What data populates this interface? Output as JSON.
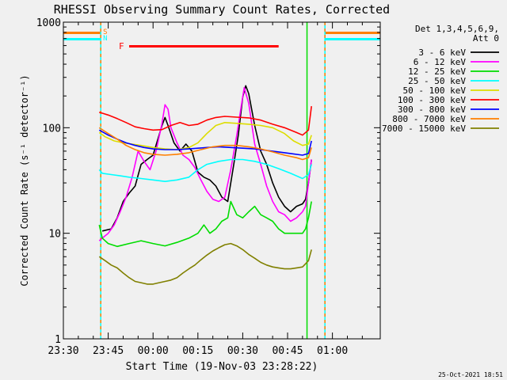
{
  "chart_data": {
    "type": "line",
    "title": "RHESSI Observing Summary Count Rates, Corrected",
    "xlabel": "Start Time (19-Nov-03 23:28:22)",
    "ylabel": "Corrected Count Rate (s⁻¹ detector⁻¹)",
    "yscale": "log",
    "ylim": [
      1,
      1000
    ],
    "xlim_minutes": [
      -30,
      76
    ],
    "x_ticks": [
      {
        "label": "23:30",
        "minutes": -30
      },
      {
        "label": "23:45",
        "minutes": -15
      },
      {
        "label": "00:00",
        "minutes": 0
      },
      {
        "label": "00:15",
        "minutes": 15
      },
      {
        "label": "00:30",
        "minutes": 30
      },
      {
        "label": "00:45",
        "minutes": 45
      },
      {
        "label": "01:00",
        "minutes": 60
      }
    ],
    "y_ticks": [
      {
        "label": "1",
        "value": 1
      },
      {
        "label": "10",
        "value": 10
      },
      {
        "label": "100",
        "value": 100
      },
      {
        "label": "1000",
        "value": 1000
      }
    ],
    "legend_header": [
      "Det 1,3,4,5,6,9,",
      "Att 0"
    ],
    "series": [
      {
        "name": "3 - 6 keV",
        "color": "#000000",
        "points": [
          [
            -17,
            10.5
          ],
          [
            -14,
            11
          ],
          [
            -12,
            14
          ],
          [
            -10,
            20
          ],
          [
            -8,
            24
          ],
          [
            -6,
            28
          ],
          [
            -4,
            45
          ],
          [
            -2,
            50
          ],
          [
            0,
            55
          ],
          [
            2,
            85
          ],
          [
            3,
            105
          ],
          [
            4,
            125
          ],
          [
            5,
            105
          ],
          [
            7,
            72
          ],
          [
            9,
            60
          ],
          [
            11,
            70
          ],
          [
            13,
            60
          ],
          [
            15,
            38
          ],
          [
            17,
            34
          ],
          [
            19,
            32
          ],
          [
            21,
            28
          ],
          [
            23,
            22
          ],
          [
            25,
            20
          ],
          [
            27,
            45
          ],
          [
            28.5,
            85
          ],
          [
            30,
            195
          ],
          [
            31,
            250
          ],
          [
            32,
            210
          ],
          [
            34,
            105
          ],
          [
            36,
            60
          ],
          [
            38,
            45
          ],
          [
            40,
            30
          ],
          [
            42,
            22
          ],
          [
            44,
            18
          ],
          [
            46,
            16
          ],
          [
            48,
            18
          ],
          [
            50,
            19
          ],
          [
            51,
            21
          ],
          [
            52,
            30
          ],
          [
            53,
            50
          ]
        ]
      },
      {
        "name": "6 - 12 keV",
        "color": "#ff00ff",
        "points": [
          [
            -18,
            8.5
          ],
          [
            -17,
            9
          ],
          [
            -15,
            10
          ],
          [
            -13,
            12
          ],
          [
            -11,
            16
          ],
          [
            -9,
            22
          ],
          [
            -7,
            34
          ],
          [
            -5,
            60
          ],
          [
            -3,
            48
          ],
          [
            -1,
            40
          ],
          [
            1,
            60
          ],
          [
            3,
            110
          ],
          [
            4,
            165
          ],
          [
            5,
            150
          ],
          [
            6,
            100
          ],
          [
            8,
            72
          ],
          [
            10,
            55
          ],
          [
            12,
            50
          ],
          [
            14,
            42
          ],
          [
            16,
            32
          ],
          [
            18,
            25
          ],
          [
            20,
            21
          ],
          [
            22,
            20
          ],
          [
            24,
            22
          ],
          [
            26,
            40
          ],
          [
            28,
            85
          ],
          [
            29.5,
            160
          ],
          [
            30.5,
            240
          ],
          [
            32,
            170
          ],
          [
            34,
            70
          ],
          [
            36,
            45
          ],
          [
            38,
            28
          ],
          [
            40,
            20
          ],
          [
            42,
            16
          ],
          [
            44,
            15
          ],
          [
            46,
            13
          ],
          [
            48,
            14
          ],
          [
            50,
            16
          ],
          [
            51,
            18
          ],
          [
            52,
            30
          ],
          [
            53,
            50
          ]
        ]
      },
      {
        "name": "12 - 25 keV",
        "color": "#00dd00",
        "points": [
          [
            -18,
            12
          ],
          [
            -17,
            9
          ],
          [
            -15,
            8
          ],
          [
            -12,
            7.5
          ],
          [
            -8,
            8
          ],
          [
            -4,
            8.5
          ],
          [
            0,
            8
          ],
          [
            4,
            7.6
          ],
          [
            8,
            8.2
          ],
          [
            12,
            9
          ],
          [
            15,
            10
          ],
          [
            17,
            12
          ],
          [
            19,
            10
          ],
          [
            21,
            11
          ],
          [
            23,
            13
          ],
          [
            25,
            14
          ],
          [
            26,
            20
          ],
          [
            28,
            15
          ],
          [
            30,
            14
          ],
          [
            32,
            16
          ],
          [
            34,
            18
          ],
          [
            36,
            15
          ],
          [
            38,
            14
          ],
          [
            40,
            13
          ],
          [
            42,
            11
          ],
          [
            44,
            10
          ],
          [
            46,
            10
          ],
          [
            48,
            10
          ],
          [
            50,
            10
          ],
          [
            51,
            11
          ],
          [
            52,
            14
          ],
          [
            53,
            20
          ]
        ]
      },
      {
        "name": "25 - 50 keV",
        "color": "#00ffff",
        "points": [
          [
            -18,
            40
          ],
          [
            -17,
            37
          ],
          [
            -14,
            36
          ],
          [
            -11,
            35
          ],
          [
            -8,
            34
          ],
          [
            -4,
            33
          ],
          [
            0,
            32
          ],
          [
            4,
            31
          ],
          [
            8,
            32
          ],
          [
            12,
            34
          ],
          [
            15,
            40
          ],
          [
            18,
            45
          ],
          [
            22,
            48
          ],
          [
            26,
            50
          ],
          [
            30,
            50
          ],
          [
            34,
            48
          ],
          [
            38,
            45
          ],
          [
            42,
            41
          ],
          [
            46,
            37
          ],
          [
            50,
            33
          ],
          [
            52,
            36
          ],
          [
            53,
            45
          ]
        ]
      },
      {
        "name": "50 - 100 keV",
        "color": "#dddd00",
        "points": [
          [
            -18,
            90
          ],
          [
            -16,
            82
          ],
          [
            -13,
            75
          ],
          [
            -10,
            72
          ],
          [
            -7,
            70
          ],
          [
            -4,
            68
          ],
          [
            0,
            65
          ],
          [
            4,
            63
          ],
          [
            8,
            62
          ],
          [
            12,
            65
          ],
          [
            15,
            72
          ],
          [
            18,
            88
          ],
          [
            21,
            105
          ],
          [
            24,
            112
          ],
          [
            28,
            110
          ],
          [
            32,
            108
          ],
          [
            36,
            105
          ],
          [
            40,
            100
          ],
          [
            44,
            88
          ],
          [
            47,
            75
          ],
          [
            50,
            68
          ],
          [
            52,
            70
          ],
          [
            53,
            85
          ]
        ]
      },
      {
        "name": "100 - 300 keV",
        "color": "#ff0000",
        "points": [
          [
            -18,
            140
          ],
          [
            -15,
            132
          ],
          [
            -12,
            122
          ],
          [
            -9,
            112
          ],
          [
            -6,
            102
          ],
          [
            -3,
            98
          ],
          [
            0,
            95
          ],
          [
            3,
            96
          ],
          [
            6,
            105
          ],
          [
            9,
            112
          ],
          [
            12,
            105
          ],
          [
            15,
            108
          ],
          [
            18,
            118
          ],
          [
            21,
            125
          ],
          [
            24,
            128
          ],
          [
            28,
            126
          ],
          [
            32,
            124
          ],
          [
            36,
            118
          ],
          [
            40,
            108
          ],
          [
            44,
            100
          ],
          [
            48,
            90
          ],
          [
            50,
            85
          ],
          [
            52,
            95
          ],
          [
            53,
            160
          ]
        ]
      },
      {
        "name": "300 - 800 keV",
        "color": "#0000ff",
        "points": [
          [
            -18,
            95
          ],
          [
            -15,
            85
          ],
          [
            -12,
            78
          ],
          [
            -9,
            72
          ],
          [
            -6,
            68
          ],
          [
            -3,
            65
          ],
          [
            0,
            63
          ],
          [
            4,
            62
          ],
          [
            8,
            62
          ],
          [
            12,
            63
          ],
          [
            15,
            64
          ],
          [
            18,
            65
          ],
          [
            22,
            66
          ],
          [
            26,
            65
          ],
          [
            30,
            64
          ],
          [
            34,
            63
          ],
          [
            38,
            61
          ],
          [
            42,
            59
          ],
          [
            46,
            57
          ],
          [
            50,
            55
          ],
          [
            52,
            57
          ],
          [
            53,
            75
          ]
        ]
      },
      {
        "name": "800 - 7000 keV",
        "color": "#ff7f00",
        "points": [
          [
            -18,
            100
          ],
          [
            -15,
            88
          ],
          [
            -12,
            78
          ],
          [
            -9,
            68
          ],
          [
            -6,
            62
          ],
          [
            -3,
            58
          ],
          [
            0,
            56
          ],
          [
            4,
            55
          ],
          [
            8,
            56
          ],
          [
            12,
            58
          ],
          [
            16,
            62
          ],
          [
            20,
            66
          ],
          [
            24,
            68
          ],
          [
            28,
            68
          ],
          [
            32,
            66
          ],
          [
            36,
            63
          ],
          [
            40,
            59
          ],
          [
            44,
            55
          ],
          [
            48,
            52
          ],
          [
            50,
            50
          ],
          [
            52,
            52
          ],
          [
            53,
            65
          ]
        ]
      },
      {
        "name": "7000 - 15000 keV",
        "color": "#808000",
        "points": [
          [
            -18,
            6
          ],
          [
            -16,
            5.5
          ],
          [
            -14,
            5
          ],
          [
            -12,
            4.7
          ],
          [
            -10,
            4.2
          ],
          [
            -8,
            3.8
          ],
          [
            -6,
            3.5
          ],
          [
            -4,
            3.4
          ],
          [
            -2,
            3.3
          ],
          [
            0,
            3.3
          ],
          [
            2,
            3.4
          ],
          [
            4,
            3.5
          ],
          [
            6,
            3.6
          ],
          [
            8,
            3.8
          ],
          [
            10,
            4.2
          ],
          [
            12,
            4.6
          ],
          [
            14,
            5
          ],
          [
            16,
            5.6
          ],
          [
            18,
            6.2
          ],
          [
            20,
            6.8
          ],
          [
            22,
            7.3
          ],
          [
            24,
            7.8
          ],
          [
            26,
            8
          ],
          [
            28,
            7.6
          ],
          [
            30,
            7
          ],
          [
            32,
            6.3
          ],
          [
            34,
            5.8
          ],
          [
            36,
            5.3
          ],
          [
            38,
            5
          ],
          [
            40,
            4.8
          ],
          [
            42,
            4.7
          ],
          [
            44,
            4.6
          ],
          [
            46,
            4.6
          ],
          [
            48,
            4.7
          ],
          [
            50,
            4.8
          ],
          [
            52,
            5.5
          ],
          [
            53,
            7
          ]
        ]
      }
    ],
    "annotations": {
      "flare_bar": {
        "label": "F",
        "start_min": -8,
        "end_min": 42,
        "color": "#ff0000"
      },
      "night_marks": [
        {
          "start_min": -30,
          "end_min": -17.5,
          "color": "#00ffff"
        },
        {
          "start_min": 57.5,
          "end_min": 76,
          "color": "#00ffff"
        }
      ],
      "saa_marks": [
        {
          "start_min": -30,
          "end_min": -17.5,
          "color": "#ff7f00"
        },
        {
          "start_min": 57.5,
          "end_min": 76,
          "color": "#ff7f00"
        }
      ],
      "flag_labels": [
        {
          "text": "S",
          "color": "#ff7f00"
        },
        {
          "text": "N",
          "color": "#00ffff"
        }
      ],
      "vertical_markers": [
        {
          "minute": -17.5,
          "color": "#00ffff"
        },
        {
          "minute": -17.5,
          "color": "#ff7f00"
        },
        {
          "minute": 51.5,
          "color": "#00dd00"
        },
        {
          "minute": 57.5,
          "color": "#00ffff"
        },
        {
          "minute": 57.5,
          "color": "#ff7f00"
        }
      ]
    },
    "footer_timestamp": "25-Oct-2021 18:51"
  }
}
